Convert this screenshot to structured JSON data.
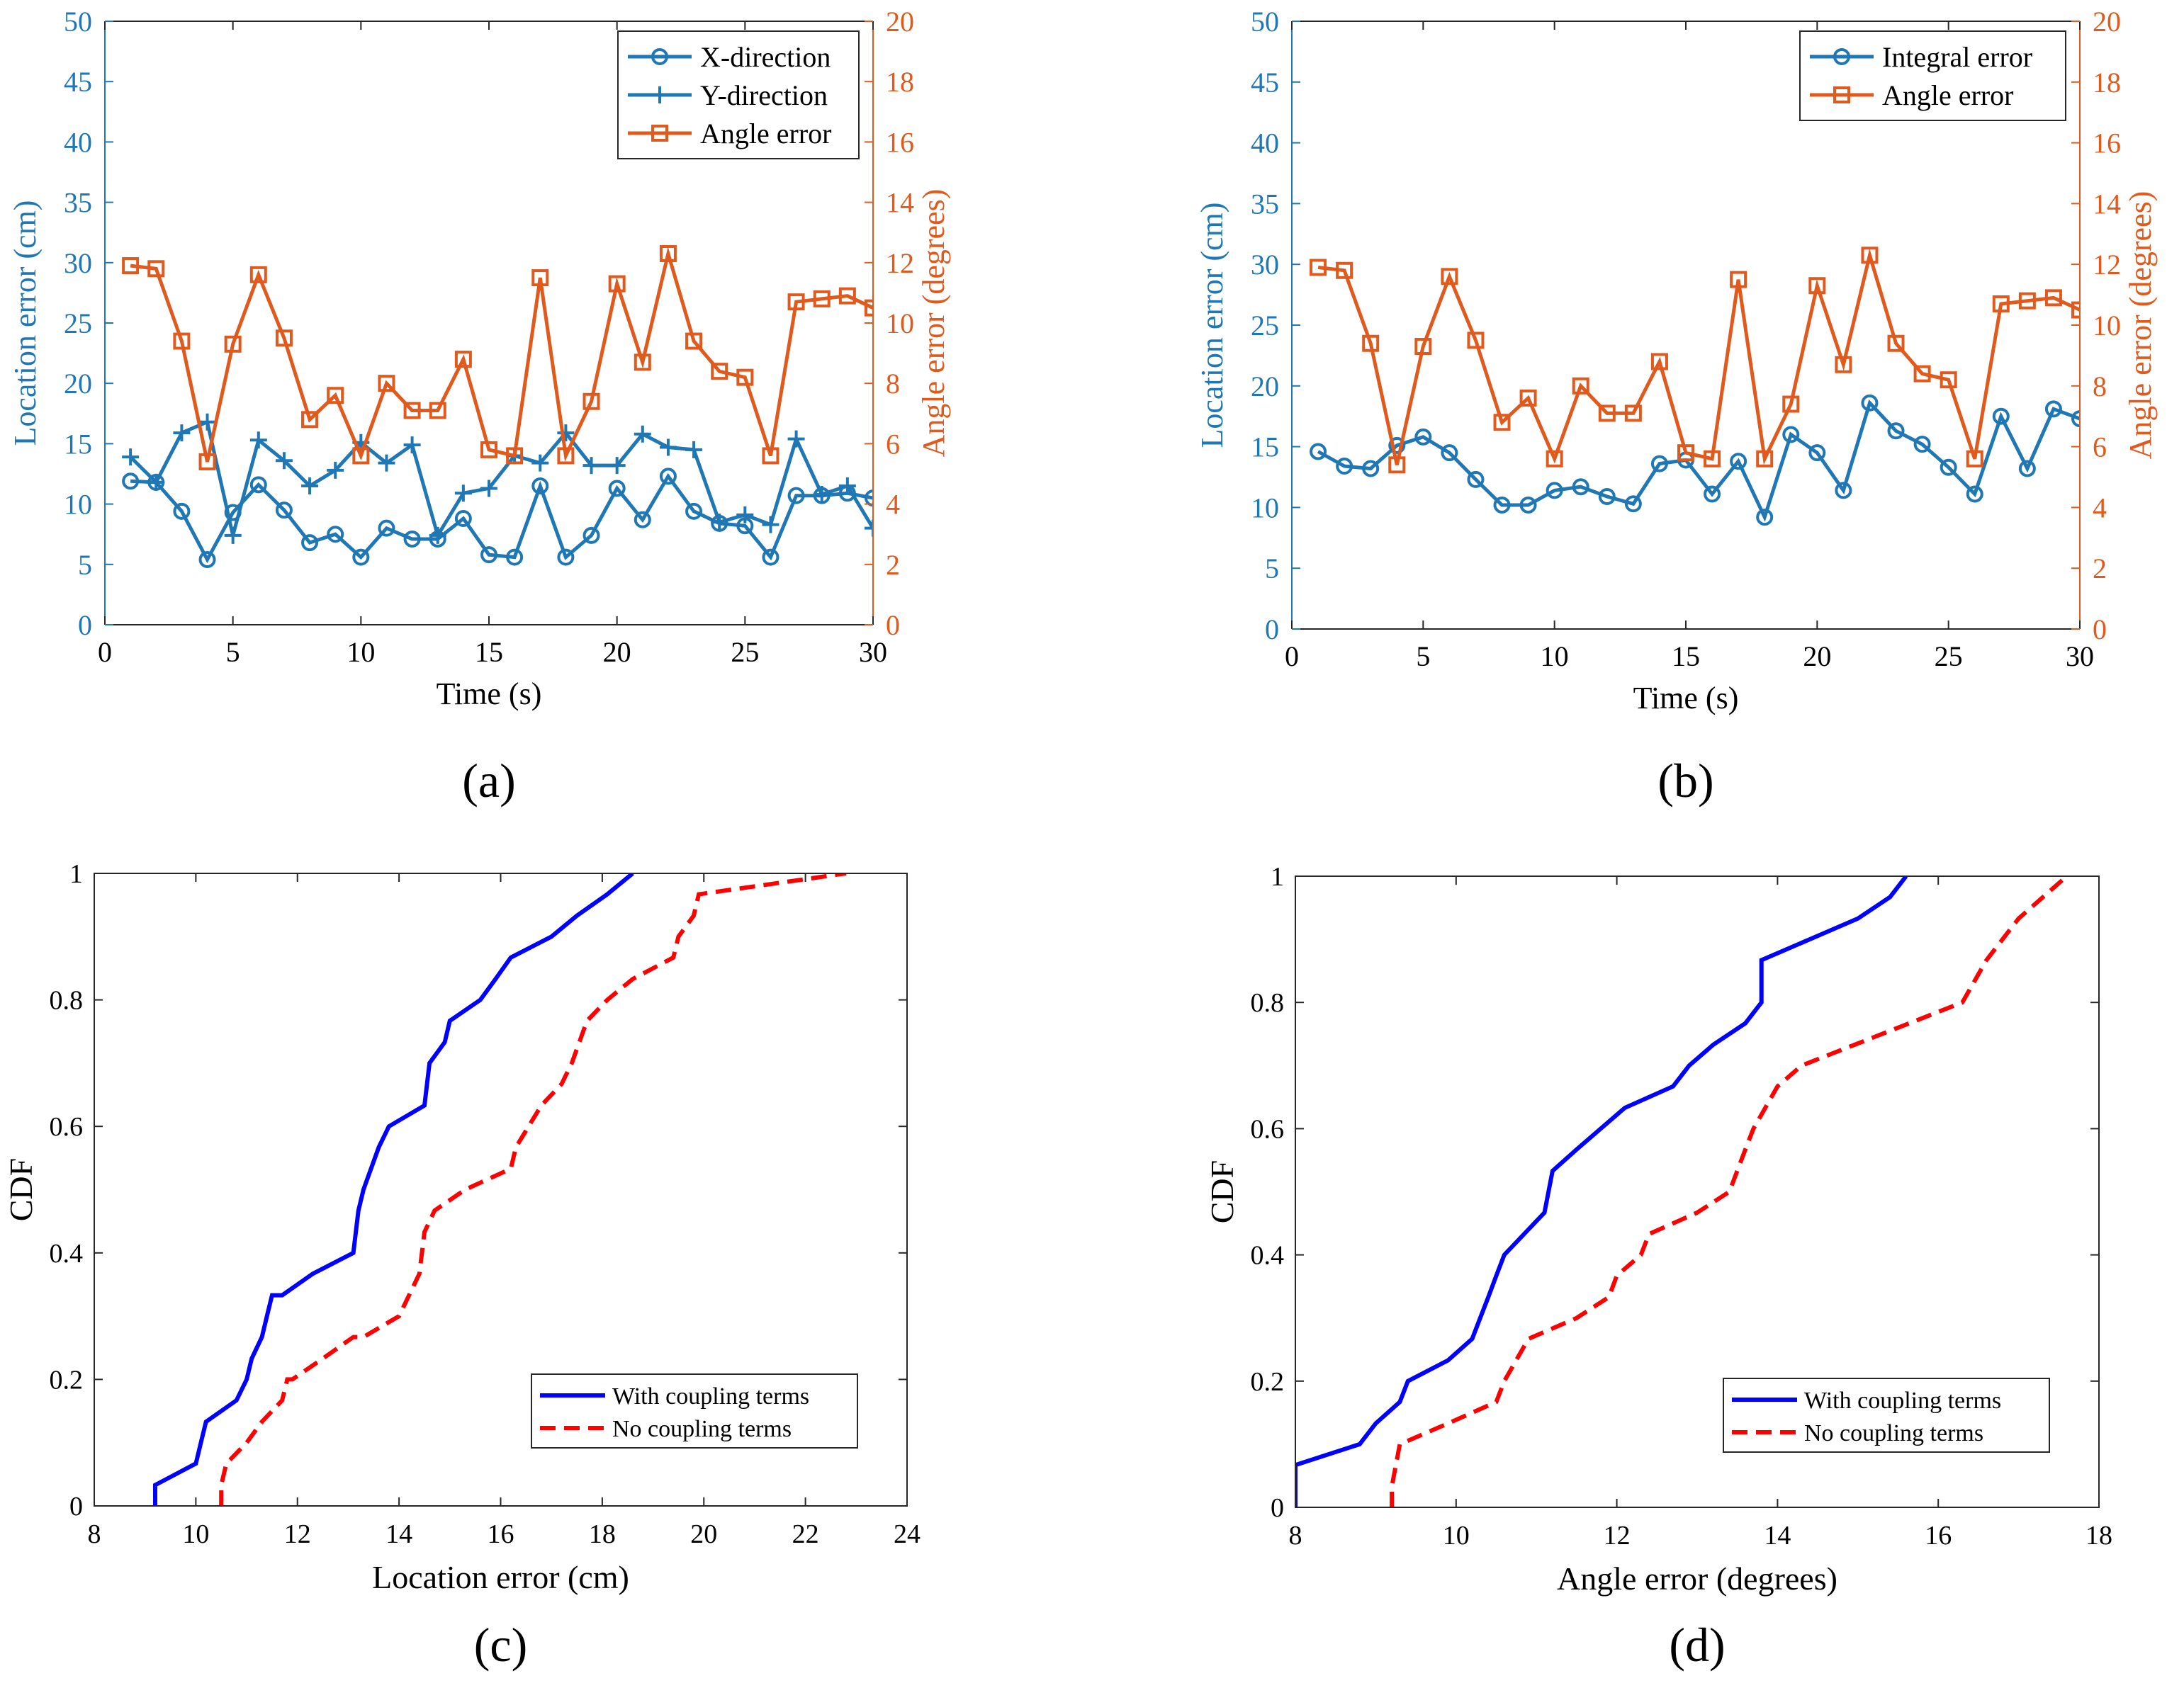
{
  "colors": {
    "blue": "#1f77b4",
    "orange": "#e05a1e",
    "pure_blue": "#0000ff",
    "red": "#ff0000",
    "axis": "#262626"
  },
  "chart_data": [
    {
      "id": "a",
      "type": "line",
      "panel_label": "(a)",
      "title": "",
      "xlabel": "Time (s)",
      "ylabel_left": "Location error (cm)",
      "ylabel_right": "Angle error (degrees)",
      "xlim": [
        0,
        30
      ],
      "ylim_left": [
        0,
        50
      ],
      "ylim_right": [
        0,
        20
      ],
      "xticks": [
        0,
        5,
        10,
        15,
        20,
        25,
        30
      ],
      "yticks_left": [
        0,
        5,
        10,
        15,
        20,
        25,
        30,
        35,
        40,
        45,
        50
      ],
      "yticks_right": [
        0,
        2,
        4,
        6,
        8,
        10,
        12,
        14,
        16,
        18,
        20
      ],
      "legend": {
        "position": "top-right",
        "entries": [
          "X-direction",
          "Y-direction",
          "Angle error"
        ]
      },
      "series": [
        {
          "name": "X-direction",
          "axis": "left",
          "color": "blue",
          "marker": "circle",
          "x": [
            1,
            2,
            3,
            4,
            5,
            6,
            7,
            8,
            9,
            10,
            11,
            12,
            13,
            14,
            15,
            16,
            17,
            18,
            19,
            20,
            21,
            22,
            23,
            24,
            25,
            26,
            27,
            28,
            29,
            30
          ],
          "y": [
            11.9,
            11.8,
            9.4,
            5.4,
            9.3,
            11.6,
            9.5,
            6.8,
            7.5,
            5.6,
            8.0,
            7.1,
            7.1,
            8.8,
            5.8,
            5.6,
            11.5,
            5.6,
            7.4,
            11.3,
            8.7,
            12.3,
            9.4,
            8.4,
            8.2,
            5.6,
            10.7,
            10.7,
            10.9,
            10.5
          ]
        },
        {
          "name": "Y-direction",
          "axis": "left",
          "color": "blue",
          "marker": "plus",
          "x": [
            1,
            2,
            3,
            4,
            5,
            6,
            7,
            8,
            9,
            10,
            11,
            12,
            13,
            14,
            15,
            16,
            17,
            18,
            19,
            20,
            21,
            22,
            23,
            24,
            25,
            26,
            27,
            28,
            29,
            30
          ],
          "y": [
            13.9,
            11.8,
            15.9,
            16.8,
            7.4,
            15.3,
            13.6,
            11.5,
            12.8,
            15.1,
            13.4,
            14.9,
            7.4,
            10.9,
            11.3,
            14.0,
            13.4,
            15.9,
            13.2,
            13.2,
            15.8,
            14.7,
            14.5,
            8.5,
            9.1,
            8.3,
            15.4,
            10.8,
            11.5,
            8.0
          ]
        },
        {
          "name": "Angle error",
          "axis": "right",
          "color": "orange",
          "marker": "square",
          "x": [
            1,
            2,
            3,
            4,
            5,
            6,
            7,
            8,
            9,
            10,
            11,
            12,
            13,
            14,
            15,
            16,
            17,
            18,
            19,
            20,
            21,
            22,
            23,
            24,
            25,
            26,
            27,
            28,
            29,
            30
          ],
          "y": [
            11.9,
            11.8,
            9.4,
            5.4,
            9.3,
            11.6,
            9.5,
            6.8,
            7.6,
            5.6,
            8.0,
            7.1,
            7.1,
            8.8,
            5.8,
            5.6,
            11.5,
            5.6,
            7.4,
            11.3,
            8.7,
            12.3,
            9.4,
            8.4,
            8.2,
            5.6,
            10.7,
            10.8,
            10.9,
            10.5
          ]
        }
      ]
    },
    {
      "id": "b",
      "type": "line",
      "panel_label": "(b)",
      "title": "",
      "xlabel": "Time (s)",
      "ylabel_left": "Location error (cm)",
      "ylabel_right": "Angle error (degrees)",
      "xlim": [
        0,
        30
      ],
      "ylim_left": [
        0,
        50
      ],
      "ylim_right": [
        0,
        20
      ],
      "xticks": [
        0,
        5,
        10,
        15,
        20,
        25,
        30
      ],
      "yticks_left": [
        0,
        5,
        10,
        15,
        20,
        25,
        30,
        35,
        40,
        45,
        50
      ],
      "yticks_right": [
        0,
        2,
        4,
        6,
        8,
        10,
        12,
        14,
        16,
        18,
        20
      ],
      "legend": {
        "position": "top-right",
        "entries": [
          "Integral error",
          "Angle error"
        ]
      },
      "series": [
        {
          "name": "Integral error",
          "axis": "left",
          "color": "blue",
          "marker": "circle",
          "x": [
            1,
            2,
            3,
            4,
            5,
            6,
            7,
            8,
            9,
            10,
            11,
            12,
            13,
            14,
            15,
            16,
            17,
            18,
            19,
            20,
            21,
            22,
            23,
            24,
            25,
            26,
            27,
            28,
            29,
            30
          ],
          "y": [
            14.6,
            13.4,
            13.2,
            15.1,
            15.8,
            14.5,
            12.3,
            10.2,
            10.2,
            11.4,
            11.7,
            10.9,
            10.3,
            13.6,
            13.9,
            11.1,
            13.8,
            9.2,
            16.0,
            14.5,
            11.4,
            18.6,
            16.3,
            15.2,
            13.3,
            11.1,
            17.5,
            13.2,
            18.1,
            17.3
          ]
        },
        {
          "name": "Angle error",
          "axis": "right",
          "color": "orange",
          "marker": "square",
          "x": [
            1,
            2,
            3,
            4,
            5,
            6,
            7,
            8,
            9,
            10,
            11,
            12,
            13,
            14,
            15,
            16,
            17,
            18,
            19,
            20,
            21,
            22,
            23,
            24,
            25,
            26,
            27,
            28,
            29,
            30
          ],
          "y": [
            11.9,
            11.8,
            9.4,
            5.4,
            9.3,
            11.6,
            9.5,
            6.8,
            7.6,
            5.6,
            8.0,
            7.1,
            7.1,
            8.8,
            5.8,
            5.6,
            11.5,
            5.6,
            7.4,
            11.3,
            8.7,
            12.3,
            9.4,
            8.4,
            8.2,
            5.6,
            10.7,
            10.8,
            10.9,
            10.5
          ]
        }
      ]
    },
    {
      "id": "c",
      "type": "line",
      "panel_label": "(c)",
      "title": "",
      "xlabel": "Location error (cm)",
      "ylabel": "CDF",
      "xlim": [
        8,
        24
      ],
      "ylim": [
        0,
        1
      ],
      "xticks": [
        8,
        10,
        12,
        14,
        16,
        18,
        20,
        22,
        24
      ],
      "yticks": [
        0,
        0.2,
        0.4,
        0.6,
        0.8,
        1
      ],
      "legend": {
        "position": "bottom-right",
        "entries": [
          "With coupling terms",
          "No coupling terms"
        ]
      },
      "series": [
        {
          "name": "With coupling terms",
          "color": "pure_blue",
          "style": "solid",
          "x": [
            9.2,
            9.2,
            10.0,
            10.1,
            10.2,
            10.8,
            11.0,
            11.1,
            11.3,
            11.4,
            11.5,
            11.7,
            12.3,
            13.1,
            13.2,
            13.3,
            13.6,
            13.8,
            14.5,
            14.6,
            14.9,
            15.0,
            15.6,
            15.9,
            16.2,
            17.0,
            17.5,
            18.1,
            18.6
          ],
          "y": [
            0,
            0.033,
            0.067,
            0.1,
            0.133,
            0.167,
            0.2,
            0.233,
            0.267,
            0.3,
            0.333,
            0.333,
            0.367,
            0.4,
            0.467,
            0.5,
            0.567,
            0.6,
            0.633,
            0.7,
            0.733,
            0.767,
            0.8,
            0.833,
            0.867,
            0.9,
            0.933,
            0.967,
            1.0
          ]
        },
        {
          "name": "No coupling terms",
          "color": "red",
          "style": "dashed",
          "x": [
            10.5,
            10.5,
            10.6,
            11.0,
            11.3,
            11.7,
            11.8,
            11.9,
            12.5,
            13.1,
            13.3,
            14.0,
            14.4,
            14.5,
            14.7,
            15.3,
            16.2,
            16.3,
            16.8,
            17.2,
            17.4,
            17.7,
            18.1,
            18.6,
            19.4,
            19.5,
            19.8,
            19.9,
            22.8
          ],
          "y": [
            0,
            0.033,
            0.067,
            0.1,
            0.133,
            0.167,
            0.2,
            0.2,
            0.233,
            0.267,
            0.267,
            0.3,
            0.367,
            0.433,
            0.467,
            0.5,
            0.533,
            0.567,
            0.633,
            0.667,
            0.7,
            0.767,
            0.8,
            0.833,
            0.867,
            0.9,
            0.933,
            0.967,
            1.0
          ]
        }
      ]
    },
    {
      "id": "d",
      "type": "line",
      "panel_label": "(d)",
      "title": "",
      "xlabel": "Angle error (degrees)",
      "ylabel": "CDF",
      "xlim": [
        8,
        18
      ],
      "ylim": [
        0,
        1
      ],
      "xticks": [
        8,
        10,
        12,
        14,
        16,
        18
      ],
      "yticks": [
        0,
        0.2,
        0.4,
        0.6,
        0.8,
        1
      ],
      "legend": {
        "position": "bottom-right",
        "entries": [
          "With coupling terms",
          "No coupling terms"
        ]
      },
      "series": [
        {
          "name": "With coupling terms",
          "color": "pure_blue",
          "style": "solid",
          "x": [
            8.0,
            8.0,
            8.8,
            9.0,
            9.3,
            9.4,
            9.9,
            10.2,
            10.3,
            10.4,
            10.5,
            10.6,
            11.1,
            11.2,
            11.5,
            11.8,
            12.1,
            12.7,
            12.9,
            13.2,
            13.6,
            13.8,
            13.8,
            14.4,
            15.0,
            15.4,
            15.6
          ],
          "y": [
            0,
            0.067,
            0.1,
            0.133,
            0.167,
            0.2,
            0.233,
            0.267,
            0.3,
            0.333,
            0.367,
            0.4,
            0.467,
            0.533,
            0.567,
            0.6,
            0.633,
            0.667,
            0.7,
            0.733,
            0.767,
            0.8,
            0.867,
            0.9,
            0.933,
            0.967,
            1.0
          ]
        },
        {
          "name": "No coupling terms",
          "color": "red",
          "style": "dashed",
          "x": [
            9.2,
            9.2,
            9.3,
            9.9,
            10.5,
            10.6,
            10.9,
            11.5,
            11.9,
            12.0,
            12.3,
            12.4,
            13.0,
            13.4,
            13.6,
            13.7,
            14.0,
            14.3,
            16.3,
            16.6,
            17.0,
            17.6
          ],
          "y": [
            0,
            0.033,
            0.1,
            0.133,
            0.167,
            0.2,
            0.267,
            0.3,
            0.333,
            0.367,
            0.4,
            0.433,
            0.467,
            0.5,
            0.567,
            0.6,
            0.667,
            0.7,
            0.8,
            0.867,
            0.933,
            1.0
          ]
        }
      ]
    }
  ]
}
